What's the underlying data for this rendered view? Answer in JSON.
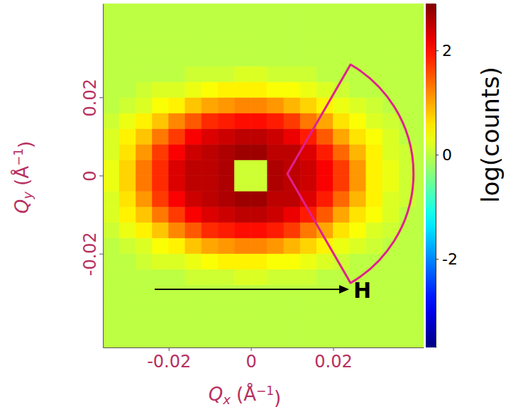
{
  "chart_data": {
    "type": "heatmap",
    "x_label": [
      "Q",
      "x",
      " (Å",
      "−1",
      ")"
    ],
    "y_label": [
      "Q",
      "y",
      " (Å",
      "−1",
      ")"
    ],
    "xlim": [
      -0.036,
      0.042
    ],
    "ylim": [
      -0.044,
      0.044
    ],
    "xticks": [
      -0.02,
      0,
      0.02
    ],
    "yticks": [
      -0.02,
      0,
      0.02
    ],
    "x_bins": [
      -0.036,
      -0.032,
      -0.028,
      -0.024,
      -0.02,
      -0.016,
      -0.012,
      -0.008,
      -0.004,
      0,
      0.004,
      0.008,
      0.012,
      0.016,
      0.02,
      0.024,
      0.028,
      0.032,
      0.036,
      0.04,
      0.044
    ],
    "y_bins": [
      -0.044,
      -0.04,
      -0.036,
      -0.032,
      -0.028,
      -0.024,
      -0.02,
      -0.016,
      -0.012,
      -0.008,
      -0.004,
      0,
      0.004,
      0.008,
      0.012,
      0.016,
      0.02,
      0.024,
      0.028,
      0.032,
      0.036,
      0.04,
      0.044
    ],
    "cells": [
      [
        0,
        0,
        0,
        0,
        0,
        0,
        0,
        0,
        0,
        0,
        0,
        0,
        0,
        0,
        0,
        0,
        0,
        0,
        0,
        0
      ],
      [
        0,
        0,
        0,
        0,
        0,
        0,
        0,
        0,
        0,
        0,
        0,
        0,
        0,
        0,
        0,
        0,
        0,
        0,
        0,
        0
      ],
      [
        0,
        0,
        0,
        0,
        0,
        0,
        0,
        0,
        0,
        0,
        0,
        0,
        0,
        0,
        0,
        0,
        0,
        0,
        0,
        0
      ],
      [
        0,
        0,
        0,
        0,
        0,
        0,
        0,
        0,
        0,
        0,
        0,
        0,
        0,
        0,
        0,
        0,
        0,
        0,
        0,
        0
      ],
      [
        0,
        0,
        0,
        0,
        0,
        0.1,
        0.1,
        0.1,
        0.2,
        0.2,
        0.1,
        0.1,
        0.1,
        0,
        0,
        0,
        0,
        0,
        0,
        0
      ],
      [
        0,
        0,
        0.1,
        0.2,
        0.2,
        0.3,
        0.4,
        0.5,
        0.5,
        0.5,
        0.4,
        0.4,
        0.3,
        0.2,
        0.1,
        0,
        0,
        0,
        0,
        0
      ],
      [
        0,
        0.1,
        0.2,
        0.4,
        0.5,
        0.8,
        1.0,
        1.1,
        1.2,
        1.2,
        1.1,
        0.9,
        0.7,
        0.5,
        0.3,
        0.2,
        0.1,
        0,
        0,
        0
      ],
      [
        0.1,
        0.3,
        0.5,
        0.8,
        1.2,
        1.5,
        1.8,
        1.9,
        2.0,
        2.0,
        1.9,
        1.7,
        1.3,
        1.0,
        0.6,
        0.4,
        0.2,
        0.1,
        0,
        0
      ],
      [
        0.2,
        0.5,
        0.8,
        1.3,
        1.7,
        2.1,
        2.3,
        2.4,
        2.5,
        2.5,
        2.4,
        2.2,
        1.9,
        1.5,
        1.0,
        0.6,
        0.4,
        0.2,
        0,
        0
      ],
      [
        0.2,
        0.6,
        1.1,
        1.7,
        2.1,
        2.4,
        2.5,
        2.6,
        2.7,
        2.7,
        2.5,
        2.5,
        2.3,
        1.9,
        1.4,
        0.9,
        0.5,
        0.2,
        0.1,
        0
      ],
      [
        0.3,
        0.7,
        1.3,
        1.8,
        2.3,
        2.5,
        2.5,
        2.6,
        0.1,
        0.1,
        2.6,
        2.5,
        2.4,
        2.1,
        1.7,
        1.1,
        0.5,
        0.3,
        0.1,
        0
      ],
      [
        0.3,
        0.7,
        1.3,
        1.8,
        2.3,
        2.5,
        2.5,
        2.6,
        0.1,
        0.1,
        2.6,
        2.5,
        2.4,
        2.1,
        1.7,
        1.1,
        0.5,
        0.3,
        0.1,
        0
      ],
      [
        0.2,
        0.6,
        1.1,
        1.7,
        2.1,
        2.4,
        2.5,
        2.6,
        2.7,
        2.7,
        2.5,
        2.5,
        2.3,
        1.9,
        1.4,
        0.9,
        0.5,
        0.2,
        0.1,
        0
      ],
      [
        0.2,
        0.5,
        0.8,
        1.3,
        1.7,
        2.1,
        2.3,
        2.4,
        2.5,
        2.5,
        2.4,
        2.2,
        1.9,
        1.5,
        1.0,
        0.6,
        0.4,
        0.2,
        0,
        0
      ],
      [
        0.1,
        0.3,
        0.5,
        0.8,
        1.2,
        1.5,
        1.8,
        1.9,
        2.0,
        2.0,
        1.9,
        1.7,
        1.3,
        1.0,
        0.6,
        0.4,
        0.2,
        0.1,
        0,
        0
      ],
      [
        0,
        0.1,
        0.2,
        0.4,
        0.5,
        0.8,
        1.0,
        1.1,
        1.2,
        1.2,
        1.1,
        0.9,
        0.7,
        0.5,
        0.3,
        0.2,
        0.1,
        0,
        0,
        0
      ],
      [
        0,
        0,
        0.1,
        0.2,
        0.2,
        0.3,
        0.4,
        0.5,
        0.5,
        0.5,
        0.4,
        0.4,
        0.3,
        0.2,
        0.1,
        0,
        0,
        0,
        0,
        0
      ],
      [
        0,
        0,
        0,
        0,
        0,
        0.1,
        0.1,
        0.1,
        0.2,
        0.2,
        0.1,
        0.1,
        0.1,
        0,
        0,
        0,
        0,
        0,
        0,
        0
      ],
      [
        0,
        0,
        0,
        0,
        0,
        0,
        0,
        0,
        0,
        0,
        0,
        0,
        0,
        0,
        0,
        0,
        0,
        0,
        0,
        0
      ],
      [
        0,
        0,
        0,
        0,
        0,
        0,
        0,
        0,
        0,
        0,
        0,
        0,
        0,
        0,
        0,
        0,
        0,
        0,
        0,
        0
      ],
      [
        0,
        0,
        0,
        0,
        0,
        0,
        0,
        0,
        0,
        0,
        0,
        0,
        0,
        0,
        0,
        0,
        0,
        0,
        0,
        0
      ],
      [
        0,
        0,
        0,
        0,
        0,
        0,
        0,
        0,
        0,
        0,
        0,
        0,
        0,
        0,
        0,
        0,
        0,
        0,
        0,
        0
      ]
    ],
    "colorbar_label": "log(counts)",
    "colorbar_range": [
      -3.7,
      2.9
    ],
    "colorbar_ticks": [
      -2,
      0,
      2
    ],
    "annotations": [
      "H"
    ]
  }
}
